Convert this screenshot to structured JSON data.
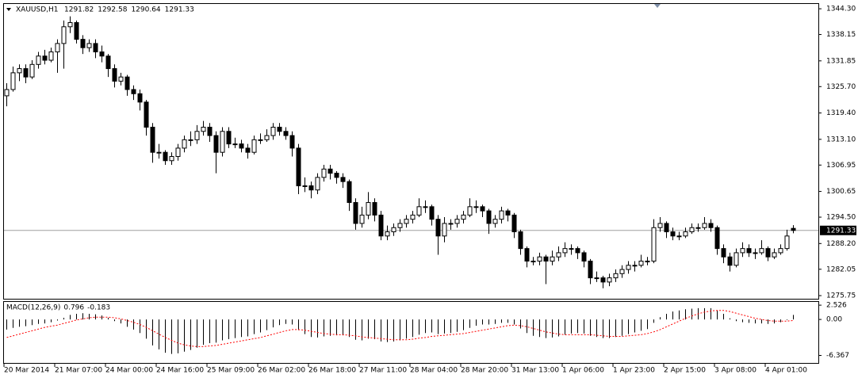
{
  "chart_data": {
    "type": "candlestick",
    "title": "XAUUSD,H1",
    "up_color": "#ffffff",
    "down_color": "#000000",
    "line_color": "#000000",
    "price_line_color": "#a0a0a0",
    "ylim": [
      1275.0,
      1345.45
    ],
    "yticks": [
      {
        "value": 1344.3,
        "label": "1344.30"
      },
      {
        "value": 1338.15,
        "label": "1338.15"
      },
      {
        "value": 1331.85,
        "label": "1331.85"
      },
      {
        "value": 1325.7,
        "label": "1325.70"
      },
      {
        "value": 1319.4,
        "label": "1319.40"
      },
      {
        "value": 1313.1,
        "label": "1313.10"
      },
      {
        "value": 1306.95,
        "label": "1306.95"
      },
      {
        "value": 1300.65,
        "label": "1300.65"
      },
      {
        "value": 1294.5,
        "label": "1294.50"
      },
      {
        "value": 1288.2,
        "label": "1288.20"
      },
      {
        "value": 1282.05,
        "label": "1282.05"
      },
      {
        "value": 1275.75,
        "label": "1275.75"
      }
    ],
    "x_labels": [
      "20 Mar 2014",
      "21 Mar 07:00",
      "24 Mar 00:00",
      "24 Mar 16:00",
      "25 Mar 09:00",
      "26 Mar 02:00",
      "26 Mar 18:00",
      "27 Mar 11:00",
      "28 Mar 04:00",
      "28 Mar 20:00",
      "31 Mar 13:00",
      "1 Apr 06:00",
      "1 Apr 23:00",
      "2 Apr 15:00",
      "3 Apr 08:00",
      "4 Apr 01:00"
    ],
    "ohlc": [
      [
        1323.5,
        1326.5,
        1321,
        1325
      ],
      [
        1325,
        1330.5,
        1324.5,
        1329
      ],
      [
        1329,
        1331,
        1327,
        1330
      ],
      [
        1330,
        1331,
        1326.5,
        1328
      ],
      [
        1328,
        1332,
        1327.5,
        1331
      ],
      [
        1331,
        1334,
        1330,
        1333
      ],
      [
        1333,
        1334.5,
        1331,
        1332
      ],
      [
        1332,
        1335,
        1331.5,
        1334
      ],
      [
        1334,
        1337,
        1329,
        1336
      ],
      [
        1336,
        1341.5,
        1330,
        1340
      ],
      [
        1340,
        1342.5,
        1338.5,
        1341
      ],
      [
        1341,
        1341.5,
        1336,
        1337
      ],
      [
        1337,
        1338,
        1333.5,
        1335
      ],
      [
        1335,
        1337,
        1334,
        1336
      ],
      [
        1336,
        1337,
        1332.5,
        1334
      ],
      [
        1334,
        1335.5,
        1331.5,
        1333
      ],
      [
        1333,
        1333.5,
        1328,
        1330
      ],
      [
        1330,
        1331,
        1325.5,
        1327
      ],
      [
        1327,
        1329,
        1326,
        1328
      ],
      [
        1328,
        1328.5,
        1323.5,
        1325
      ],
      [
        1325,
        1326,
        1322.5,
        1324
      ],
      [
        1324,
        1325,
        1320,
        1322
      ],
      [
        1322,
        1322.5,
        1314,
        1316
      ],
      [
        1316,
        1317,
        1307.5,
        1310
      ],
      [
        1310,
        1312,
        1308.5,
        1310
      ],
      [
        1310,
        1310.5,
        1307,
        1308
      ],
      [
        1308,
        1310,
        1307,
        1309
      ],
      [
        1309,
        1312,
        1308,
        1311
      ],
      [
        1311,
        1314,
        1310,
        1313
      ],
      [
        1313,
        1315,
        1311.5,
        1313
      ],
      [
        1313,
        1316.5,
        1312,
        1315
      ],
      [
        1315,
        1317.5,
        1314,
        1316
      ],
      [
        1316,
        1317,
        1312.5,
        1314
      ],
      [
        1314,
        1315,
        1305,
        1310
      ],
      [
        1310,
        1316,
        1309,
        1315
      ],
      [
        1315,
        1316,
        1311,
        1312
      ],
      [
        1312,
        1313.5,
        1311,
        1312
      ],
      [
        1312,
        1313,
        1310,
        1311
      ],
      [
        1311,
        1312,
        1308.5,
        1310
      ],
      [
        1310,
        1314,
        1309.5,
        1313
      ],
      [
        1313,
        1314.5,
        1312,
        1313
      ],
      [
        1313,
        1315.5,
        1312.5,
        1314
      ],
      [
        1314,
        1317,
        1313,
        1316
      ],
      [
        1316,
        1317,
        1314,
        1315
      ],
      [
        1315,
        1316,
        1313,
        1314
      ],
      [
        1314,
        1315,
        1309,
        1311
      ],
      [
        1311,
        1312,
        1300,
        1302
      ],
      [
        1302,
        1304,
        1300.5,
        1302
      ],
      [
        1302,
        1303,
        1299,
        1301
      ],
      [
        1301,
        1305,
        1300,
        1304
      ],
      [
        1304,
        1307,
        1303,
        1306
      ],
      [
        1306,
        1307,
        1303.5,
        1305
      ],
      [
        1305,
        1305.5,
        1302.5,
        1304
      ],
      [
        1304,
        1305,
        1301.5,
        1303
      ],
      [
        1303,
        1303.5,
        1296,
        1298
      ],
      [
        1298,
        1299,
        1291.5,
        1293
      ],
      [
        1293,
        1297,
        1292,
        1295
      ],
      [
        1295,
        1300.5,
        1294,
        1298
      ],
      [
        1298,
        1299,
        1293.5,
        1295
      ],
      [
        1295,
        1296,
        1289,
        1290
      ],
      [
        1290,
        1292.5,
        1289,
        1291
      ],
      [
        1291,
        1293,
        1290,
        1292
      ],
      [
        1292,
        1294,
        1291,
        1293
      ],
      [
        1293,
        1295,
        1292,
        1294
      ],
      [
        1294,
        1296,
        1293,
        1295
      ],
      [
        1295,
        1299,
        1294.5,
        1297
      ],
      [
        1297,
        1298.5,
        1295.5,
        1297
      ],
      [
        1297,
        1297.5,
        1292.5,
        1294
      ],
      [
        1294,
        1295,
        1285.5,
        1290
      ],
      [
        1290,
        1294.5,
        1288.5,
        1293
      ],
      [
        1293,
        1294,
        1291.5,
        1293
      ],
      [
        1293,
        1295,
        1292,
        1294
      ],
      [
        1294,
        1296,
        1293,
        1295
      ],
      [
        1295,
        1299,
        1294.5,
        1297
      ],
      [
        1297,
        1298.5,
        1295.5,
        1297
      ],
      [
        1297,
        1297.5,
        1294.5,
        1296
      ],
      [
        1296,
        1296.5,
        1290.5,
        1293
      ],
      [
        1293,
        1295,
        1292,
        1294
      ],
      [
        1294,
        1297,
        1293,
        1296
      ],
      [
        1296,
        1296.5,
        1293.5,
        1295
      ],
      [
        1295,
        1295.5,
        1289.5,
        1291
      ],
      [
        1291,
        1291.5,
        1285.5,
        1287
      ],
      [
        1287,
        1287.5,
        1282.5,
        1284
      ],
      [
        1284,
        1285,
        1283,
        1284
      ],
      [
        1284,
        1286,
        1283,
        1285
      ],
      [
        1285,
        1285.5,
        1278.5,
        1284
      ],
      [
        1284,
        1286.5,
        1283,
        1285
      ],
      [
        1285,
        1287.5,
        1284,
        1286
      ],
      [
        1286,
        1288.5,
        1285,
        1287
      ],
      [
        1287,
        1288,
        1285.5,
        1287
      ],
      [
        1287,
        1287.5,
        1284.5,
        1286
      ],
      [
        1286,
        1286.5,
        1282.5,
        1284
      ],
      [
        1284,
        1284.5,
        1278.5,
        1280
      ],
      [
        1280,
        1281.5,
        1279,
        1280
      ],
      [
        1280,
        1280.5,
        1277.5,
        1279
      ],
      [
        1279,
        1281,
        1278,
        1280
      ],
      [
        1280,
        1282,
        1279,
        1281
      ],
      [
        1281,
        1283,
        1280,
        1282
      ],
      [
        1282,
        1284,
        1281,
        1283
      ],
      [
        1283,
        1284,
        1281.5,
        1283
      ],
      [
        1283,
        1285.5,
        1282.5,
        1284
      ],
      [
        1284,
        1285,
        1283,
        1284
      ],
      [
        1284,
        1294,
        1283.5,
        1292
      ],
      [
        1292,
        1294.5,
        1291,
        1293
      ],
      [
        1293,
        1293.5,
        1289.5,
        1291
      ],
      [
        1291,
        1292,
        1289,
        1290
      ],
      [
        1290,
        1291,
        1289,
        1290
      ],
      [
        1290,
        1292,
        1289.5,
        1291
      ],
      [
        1291,
        1293,
        1290.5,
        1292
      ],
      [
        1292,
        1293,
        1291,
        1292
      ],
      [
        1292,
        1294.5,
        1291.5,
        1293
      ],
      [
        1293,
        1294,
        1291,
        1292
      ],
      [
        1292,
        1292.5,
        1285.5,
        1287
      ],
      [
        1287,
        1288,
        1283.5,
        1285
      ],
      [
        1285,
        1286,
        1281.5,
        1283
      ],
      [
        1283,
        1287,
        1282.5,
        1286
      ],
      [
        1286,
        1288.5,
        1285,
        1287
      ],
      [
        1287,
        1288,
        1285,
        1286
      ],
      [
        1286,
        1287,
        1284.5,
        1286
      ],
      [
        1286,
        1289,
        1285.5,
        1287
      ],
      [
        1287,
        1287.5,
        1284,
        1285
      ],
      [
        1285,
        1287,
        1284.5,
        1286
      ],
      [
        1286,
        1288,
        1285.5,
        1287
      ],
      [
        1287,
        1291.5,
        1286.5,
        1290
      ],
      [
        1291.82,
        1292.58,
        1290.64,
        1291.33
      ]
    ],
    "macd": {
      "label": "MACD(12,26,9)",
      "ylim": [
        -7.7,
        3.1
      ],
      "yticks": [
        2.526,
        {
          "value": 0,
          "label": "0.00"
        },
        -6.367
      ],
      "main": {
        "color": "#000000",
        "values": [
          -1.8,
          -1.5,
          -1.3,
          -1.2,
          -1.0,
          -0.8,
          -0.7,
          -0.5,
          -0.2,
          0.3,
          0.8,
          1.0,
          1.1,
          1.0,
          0.9,
          0.7,
          0.3,
          -0.3,
          -0.7,
          -1.3,
          -1.8,
          -2.4,
          -3.4,
          -4.6,
          -5.3,
          -5.9,
          -6.1,
          -6.0,
          -5.7,
          -5.4,
          -5.0,
          -4.5,
          -4.2,
          -4.1,
          -3.7,
          -3.5,
          -3.3,
          -3.1,
          -3.0,
          -2.6,
          -2.3,
          -1.9,
          -1.4,
          -1.0,
          -0.8,
          -0.9,
          -1.9,
          -2.6,
          -3.1,
          -3.2,
          -3.0,
          -2.9,
          -2.8,
          -2.8,
          -3.1,
          -3.6,
          -3.7,
          -3.4,
          -3.5,
          -3.9,
          -4.0,
          -3.9,
          -3.7,
          -3.4,
          -3.1,
          -2.7,
          -2.4,
          -2.3,
          -2.6,
          -2.5,
          -2.4,
          -2.2,
          -1.9,
          -1.5,
          -1.1,
          -0.9,
          -0.9,
          -0.8,
          -0.6,
          -0.6,
          -0.9,
          -1.6,
          -2.4,
          -2.9,
          -3.1,
          -3.3,
          -3.2,
          -3.0,
          -2.7,
          -2.5,
          -2.4,
          -2.5,
          -2.9,
          -3.1,
          -3.3,
          -3.3,
          -3.1,
          -2.9,
          -2.6,
          -2.3,
          -2.0,
          -1.7,
          -0.6,
          0.4,
          1.0,
          1.4,
          1.6,
          1.8,
          1.9,
          2.0,
          2.0,
          2.0,
          1.6,
          1.0,
          0.2,
          -0.3,
          -0.5,
          -0.6,
          -0.7,
          -0.7,
          -0.8,
          -0.7,
          -0.5,
          -0.1,
          0.796
        ]
      },
      "signal": {
        "color": "#ff0000",
        "values": [
          -3.2,
          -2.9,
          -2.6,
          -2.3,
          -2.0,
          -1.7,
          -1.4,
          -1.2,
          -1.0,
          -0.7,
          -0.4,
          -0.1,
          0.1,
          0.3,
          0.4,
          0.4,
          0.4,
          0.3,
          0.1,
          -0.2,
          -0.5,
          -0.9,
          -1.4,
          -2.0,
          -2.6,
          -3.2,
          -3.7,
          -4.2,
          -4.5,
          -4.7,
          -4.8,
          -4.8,
          -4.7,
          -4.6,
          -4.4,
          -4.2,
          -4.0,
          -3.8,
          -3.6,
          -3.4,
          -3.2,
          -2.9,
          -2.6,
          -2.3,
          -2.0,
          -1.8,
          -1.8,
          -1.9,
          -2.1,
          -2.3,
          -2.5,
          -2.6,
          -2.7,
          -2.7,
          -2.8,
          -2.9,
          -3.1,
          -3.2,
          -3.3,
          -3.4,
          -3.5,
          -3.6,
          -3.6,
          -3.6,
          -3.5,
          -3.3,
          -3.2,
          -3.0,
          -2.9,
          -2.8,
          -2.7,
          -2.6,
          -2.5,
          -2.3,
          -2.1,
          -1.9,
          -1.7,
          -1.5,
          -1.3,
          -1.1,
          -1.0,
          -1.1,
          -1.3,
          -1.6,
          -1.9,
          -2.2,
          -2.4,
          -2.6,
          -2.7,
          -2.7,
          -2.7,
          -2.7,
          -2.7,
          -2.8,
          -2.9,
          -3.0,
          -3.0,
          -3.0,
          -2.9,
          -2.8,
          -2.7,
          -2.5,
          -2.2,
          -1.8,
          -1.3,
          -0.8,
          -0.3,
          0.2,
          0.6,
          1.0,
          1.3,
          1.5,
          1.6,
          1.6,
          1.4,
          1.1,
          0.8,
          0.5,
          0.2,
          0.0,
          -0.2,
          -0.3,
          -0.3,
          -0.3,
          -0.183
        ]
      }
    }
  }
}
